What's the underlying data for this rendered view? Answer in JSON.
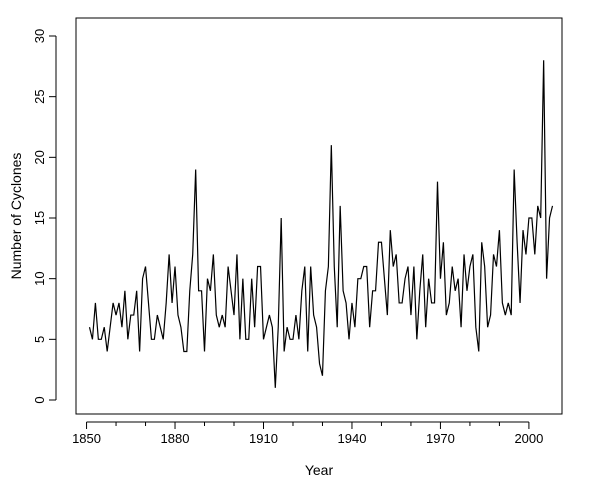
{
  "chart_data": {
    "type": "line",
    "title": "",
    "xlabel": "Year",
    "ylabel": "Number of Cyclones",
    "xlim": [
      1851,
      2008
    ],
    "ylim": [
      0,
      30
    ],
    "xticks": [
      1850,
      1880,
      1910,
      1940,
      1970,
      2000
    ],
    "yticks": [
      0,
      5,
      10,
      15,
      20,
      25,
      30
    ],
    "grid": false,
    "legend": "none",
    "series": [
      {
        "color": "#000000",
        "x": [
          1851,
          1852,
          1853,
          1854,
          1855,
          1856,
          1857,
          1858,
          1859,
          1860,
          1861,
          1862,
          1863,
          1864,
          1865,
          1866,
          1867,
          1868,
          1869,
          1870,
          1871,
          1872,
          1873,
          1874,
          1875,
          1876,
          1877,
          1878,
          1879,
          1880,
          1881,
          1882,
          1883,
          1884,
          1885,
          1886,
          1887,
          1888,
          1889,
          1890,
          1891,
          1892,
          1893,
          1894,
          1895,
          1896,
          1897,
          1898,
          1899,
          1900,
          1901,
          1902,
          1903,
          1904,
          1905,
          1906,
          1907,
          1908,
          1909,
          1910,
          1911,
          1912,
          1913,
          1914,
          1915,
          1916,
          1917,
          1918,
          1919,
          1920,
          1921,
          1922,
          1923,
          1924,
          1925,
          1926,
          1927,
          1928,
          1929,
          1930,
          1931,
          1932,
          1933,
          1934,
          1935,
          1936,
          1937,
          1938,
          1939,
          1940,
          1941,
          1942,
          1943,
          1944,
          1945,
          1946,
          1947,
          1948,
          1949,
          1950,
          1951,
          1952,
          1953,
          1954,
          1955,
          1956,
          1957,
          1958,
          1959,
          1960,
          1961,
          1962,
          1963,
          1964,
          1965,
          1966,
          1967,
          1968,
          1969,
          1970,
          1971,
          1972,
          1973,
          1974,
          1975,
          1976,
          1977,
          1978,
          1979,
          1980,
          1981,
          1982,
          1983,
          1984,
          1985,
          1986,
          1987,
          1988,
          1989,
          1990,
          1991,
          1992,
          1993,
          1994,
          1995,
          1996,
          1997,
          1998,
          1999,
          2000,
          2001,
          2002,
          2003,
          2004,
          2005,
          2006,
          2007,
          2008
        ],
        "y": [
          6,
          5,
          8,
          5,
          5,
          6,
          4,
          6,
          8,
          7,
          8,
          6,
          9,
          5,
          7,
          7,
          9,
          4,
          10,
          11,
          8,
          5,
          5,
          7,
          6,
          5,
          8,
          12,
          8,
          11,
          7,
          6,
          4,
          4,
          9,
          12,
          19,
          9,
          9,
          4,
          10,
          9,
          12,
          7,
          6,
          7,
          6,
          11,
          9,
          7,
          12,
          5,
          10,
          5,
          5,
          10,
          6,
          11,
          11,
          5,
          6,
          7,
          6,
          1,
          6,
          15,
          4,
          6,
          5,
          5,
          7,
          5,
          9,
          11,
          4,
          11,
          7,
          6,
          3,
          2,
          9,
          11,
          21,
          11,
          6,
          16,
          9,
          8,
          5,
          8,
          6,
          10,
          10,
          11,
          11,
          6,
          9,
          9,
          13,
          13,
          10,
          7,
          14,
          11,
          12,
          8,
          8,
          10,
          11,
          7,
          11,
          5,
          9,
          12,
          6,
          10,
          8,
          8,
          18,
          10,
          13,
          7,
          8,
          11,
          9,
          10,
          6,
          12,
          9,
          11,
          12,
          6,
          4,
          13,
          11,
          6,
          7,
          12,
          11,
          14,
          8,
          7,
          8,
          7,
          19,
          13,
          8,
          14,
          12,
          15,
          15,
          12,
          16,
          15,
          28,
          10,
          15,
          16
        ]
      }
    ]
  }
}
